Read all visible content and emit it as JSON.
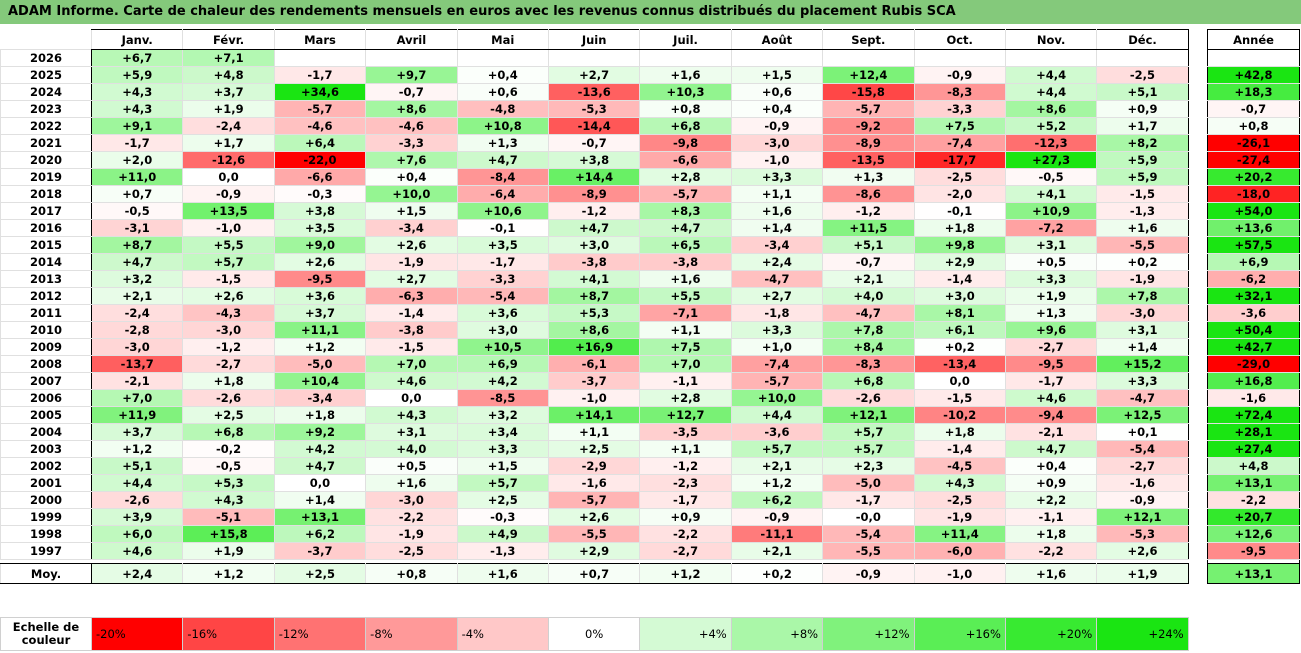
{
  "title": "ADAM Informe. Carte de chaleur des rendements mensuels en euros avec les revenus connus distribués du placement Rubis SCA",
  "chart_data": {
    "type": "heatmap",
    "columns": [
      "Janv.",
      "Févr.",
      "Mars",
      "Avril",
      "Mai",
      "Juin",
      "Juil.",
      "Août",
      "Sept.",
      "Oct.",
      "Nov.",
      "Déc."
    ],
    "year_header": "Année",
    "rows": [
      {
        "label": "2026",
        "values": [
          6.7,
          7.1,
          null,
          null,
          null,
          null,
          null,
          null,
          null,
          null,
          null,
          null
        ],
        "year": null
      },
      {
        "label": "2025",
        "values": [
          5.9,
          4.8,
          -1.7,
          9.7,
          0.4,
          2.7,
          1.6,
          1.5,
          12.4,
          -0.9,
          4.4,
          -2.5
        ],
        "year": 42.8
      },
      {
        "label": "2024",
        "values": [
          4.3,
          3.7,
          34.6,
          -0.7,
          0.6,
          -13.6,
          10.3,
          0.6,
          -15.8,
          -8.3,
          4.4,
          5.1
        ],
        "year": 18.3
      },
      {
        "label": "2023",
        "values": [
          4.3,
          1.9,
          -5.7,
          8.6,
          -4.8,
          -5.3,
          0.8,
          0.4,
          -5.7,
          -3.3,
          8.6,
          0.9
        ],
        "year": -0.7
      },
      {
        "label": "2022",
        "values": [
          9.1,
          -2.4,
          -4.6,
          -4.6,
          10.8,
          -14.4,
          6.8,
          -0.9,
          -9.2,
          7.5,
          5.2,
          1.7
        ],
        "year": 0.8
      },
      {
        "label": "2021",
        "values": [
          -1.7,
          1.7,
          6.4,
          -3.3,
          1.3,
          -0.7,
          -9.8,
          -3.0,
          -8.9,
          -7.4,
          -12.3,
          8.2
        ],
        "year": -26.1
      },
      {
        "label": "2020",
        "values": [
          2.0,
          -12.6,
          -22.0,
          7.6,
          4.7,
          3.8,
          -6.6,
          -1.0,
          -13.5,
          -17.7,
          27.3,
          5.9
        ],
        "year": -27.4
      },
      {
        "label": "2019",
        "values": [
          11.0,
          0.0,
          -6.6,
          0.4,
          -8.4,
          14.4,
          2.8,
          3.3,
          1.3,
          -2.5,
          -0.5,
          5.9
        ],
        "year": 20.2
      },
      {
        "label": "2018",
        "values": [
          0.7,
          -0.9,
          -0.3,
          10.0,
          -6.4,
          -8.9,
          -5.7,
          1.1,
          -8.6,
          -2.0,
          4.1,
          -1.5
        ],
        "year": -18.0
      },
      {
        "label": "2017",
        "values": [
          -0.5,
          13.5,
          3.8,
          1.5,
          10.6,
          -1.2,
          8.3,
          1.6,
          -1.2,
          -0.1,
          10.9,
          -1.3
        ],
        "year": 54.0
      },
      {
        "label": "2016",
        "values": [
          -3.1,
          -1.0,
          3.5,
          -3.4,
          -0.1,
          4.7,
          4.7,
          1.4,
          11.5,
          1.8,
          -7.2,
          1.6
        ],
        "year": 13.6
      },
      {
        "label": "2015",
        "values": [
          8.7,
          5.5,
          9.0,
          2.6,
          3.5,
          3.0,
          6.5,
          -3.4,
          5.1,
          9.8,
          3.1,
          -5.5
        ],
        "year": 57.5
      },
      {
        "label": "2014",
        "values": [
          4.7,
          5.7,
          2.6,
          -1.9,
          -1.7,
          -3.8,
          -3.8,
          2.4,
          -0.7,
          2.9,
          0.5,
          0.2
        ],
        "year": 6.9
      },
      {
        "label": "2013",
        "values": [
          3.2,
          -1.5,
          -9.5,
          2.7,
          -3.3,
          4.1,
          1.6,
          -4.7,
          2.1,
          -1.4,
          3.3,
          -1.9
        ],
        "year": -6.2
      },
      {
        "label": "2012",
        "values": [
          2.1,
          2.6,
          3.6,
          -6.3,
          -5.4,
          8.7,
          5.5,
          2.7,
          4.0,
          3.0,
          1.9,
          7.8
        ],
        "year": 32.1
      },
      {
        "label": "2011",
        "values": [
          -2.4,
          -4.3,
          3.7,
          -1.4,
          3.6,
          5.3,
          -7.1,
          -1.8,
          -4.7,
          8.1,
          1.3,
          -3.0
        ],
        "year": -3.6
      },
      {
        "label": "2010",
        "values": [
          -2.8,
          -3.0,
          11.1,
          -3.8,
          3.0,
          8.6,
          1.1,
          3.3,
          7.8,
          6.1,
          9.6,
          3.1
        ],
        "year": 50.4
      },
      {
        "label": "2009",
        "values": [
          -3.0,
          -1.2,
          1.2,
          -1.5,
          10.5,
          16.9,
          7.5,
          1.0,
          8.4,
          0.2,
          -2.7,
          1.4
        ],
        "year": 42.7
      },
      {
        "label": "2008",
        "values": [
          -13.7,
          -2.7,
          -5.0,
          7.0,
          6.9,
          -6.1,
          7.0,
          -7.4,
          -8.3,
          -13.4,
          -9.5,
          15.2
        ],
        "year": -29.0
      },
      {
        "label": "2007",
        "values": [
          -2.1,
          1.8,
          10.4,
          4.6,
          4.2,
          -3.7,
          -1.1,
          -5.7,
          6.8,
          0.0,
          -1.7,
          3.3
        ],
        "year": 16.8
      },
      {
        "label": "2006",
        "values": [
          7.0,
          -2.6,
          -3.4,
          0.0,
          -8.5,
          -1.0,
          2.8,
          10.0,
          -2.6,
          -1.5,
          4.6,
          -4.7
        ],
        "year": -1.6
      },
      {
        "label": "2005",
        "values": [
          11.9,
          2.5,
          1.8,
          4.3,
          3.2,
          14.1,
          12.7,
          4.4,
          12.1,
          -10.2,
          -9.4,
          12.5
        ],
        "year": 72.4
      },
      {
        "label": "2004",
        "values": [
          3.7,
          6.8,
          9.2,
          3.1,
          3.4,
          1.1,
          -3.5,
          -3.6,
          5.7,
          1.8,
          -2.1,
          0.1
        ],
        "year": 28.1
      },
      {
        "label": "2003",
        "values": [
          1.2,
          -0.2,
          4.2,
          4.0,
          3.3,
          2.5,
          1.1,
          5.7,
          5.7,
          -1.4,
          4.7,
          -5.4
        ],
        "year": 27.4
      },
      {
        "label": "2002",
        "values": [
          5.1,
          -0.5,
          4.7,
          0.5,
          1.5,
          -2.9,
          -1.2,
          2.1,
          2.3,
          -4.5,
          0.4,
          -2.7
        ],
        "year": 4.8
      },
      {
        "label": "2001",
        "values": [
          4.4,
          5.3,
          0.0,
          1.6,
          5.7,
          -1.6,
          -2.3,
          1.2,
          -5.0,
          4.3,
          0.9,
          -1.6
        ],
        "year": 13.1
      },
      {
        "label": "2000",
        "values": [
          -2.6,
          4.3,
          1.4,
          -3.0,
          2.5,
          -5.7,
          -1.7,
          6.2,
          -1.7,
          -2.5,
          2.2,
          -0.9
        ],
        "year": -2.2
      },
      {
        "label": "1999",
        "values": [
          3.9,
          -5.1,
          13.1,
          -2.2,
          -0.3,
          2.6,
          0.9,
          -0.9,
          -0.0,
          -1.9,
          -1.1,
          12.1
        ],
        "year": 20.7
      },
      {
        "label": "1998",
        "values": [
          6.0,
          15.8,
          6.2,
          -1.9,
          4.9,
          -5.5,
          -2.2,
          -11.1,
          -5.4,
          11.4,
          1.8,
          -5.3
        ],
        "year": 12.6
      },
      {
        "label": "1997",
        "values": [
          4.6,
          1.9,
          -3.7,
          -2.5,
          -1.3,
          2.9,
          -2.7,
          2.1,
          -5.5,
          -6.0,
          -2.2,
          2.6
        ],
        "year": -9.5
      }
    ],
    "average": {
      "label": "Moy.",
      "values": [
        2.4,
        1.2,
        2.5,
        0.8,
        1.6,
        0.7,
        1.2,
        0.2,
        -0.9,
        -1.0,
        1.6,
        1.9
      ],
      "year": 13.1
    },
    "color_scale": {
      "label": "Echelle de couleur",
      "stops": [
        {
          "text": "-20%",
          "value": -20,
          "color": "#ff0000"
        },
        {
          "text": "-16%",
          "value": -16,
          "color": "#ff4545"
        },
        {
          "text": "-12%",
          "value": -12,
          "color": "#ff7272"
        },
        {
          "text": "-8%",
          "value": -8,
          "color": "#ff9999"
        },
        {
          "text": "-4%",
          "value": -4,
          "color": "#ffc8c8"
        },
        {
          "text": "0%",
          "value": 0,
          "color": "#ffffff"
        },
        {
          "text": "+4%",
          "value": 4,
          "color": "#d4fad4"
        },
        {
          "text": "+8%",
          "value": 8,
          "color": "#aaf7a8"
        },
        {
          "text": "+12%",
          "value": 12,
          "color": "#80f27c"
        },
        {
          "text": "+16%",
          "value": 16,
          "color": "#5aee55"
        },
        {
          "text": "+20%",
          "value": 20,
          "color": "#38ea31"
        },
        {
          "text": "+24%",
          "value": 24,
          "color": "#1ae512"
        }
      ]
    }
  }
}
